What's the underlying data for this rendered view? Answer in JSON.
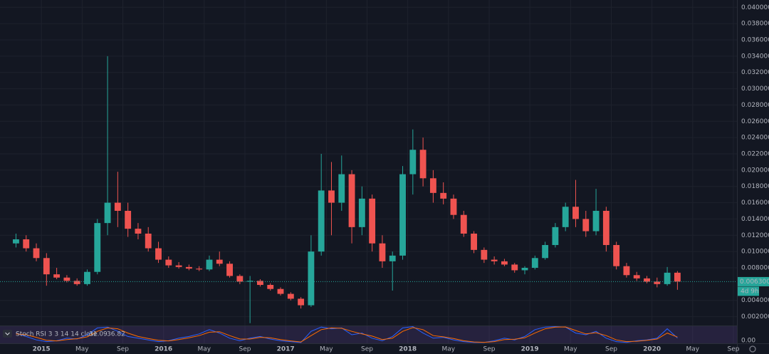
{
  "chart_data": {
    "type": "candlestick",
    "x": [
      "2014-10",
      "2014-11",
      "2014-12",
      "2015-01",
      "2015-02",
      "2015-03",
      "2015-04",
      "2015-05",
      "2015-06",
      "2015-07",
      "2015-08",
      "2015-09",
      "2015-10",
      "2015-11",
      "2015-12",
      "2016-01",
      "2016-02",
      "2016-03",
      "2016-04",
      "2016-05",
      "2016-06",
      "2016-07",
      "2016-08",
      "2016-09",
      "2016-10",
      "2016-11",
      "2016-12",
      "2017-01",
      "2017-02",
      "2017-03",
      "2017-04",
      "2017-05",
      "2017-06",
      "2017-07",
      "2017-08",
      "2017-09",
      "2017-10",
      "2017-11",
      "2017-12",
      "2018-01",
      "2018-02",
      "2018-03",
      "2018-04",
      "2018-05",
      "2018-06",
      "2018-07",
      "2018-08",
      "2018-09",
      "2018-10",
      "2018-11",
      "2018-12",
      "2019-01",
      "2019-02",
      "2019-03",
      "2019-04",
      "2019-05",
      "2019-06",
      "2019-07",
      "2019-08",
      "2019-09",
      "2019-10",
      "2019-11",
      "2019-12",
      "2020-01",
      "2020-02",
      "2020-03"
    ],
    "open": [
      0.011,
      0.0115,
      0.0104,
      0.0092,
      0.0072,
      0.0068,
      0.0064,
      0.006,
      0.0075,
      0.0135,
      0.016,
      0.015,
      0.0128,
      0.0122,
      0.0104,
      0.009,
      0.0083,
      0.0081,
      0.0079,
      0.0078,
      0.009,
      0.0085,
      0.007,
      0.0063,
      0.0064,
      0.0059,
      0.0054,
      0.0048,
      0.0042,
      0.0034,
      0.01,
      0.0175,
      0.016,
      0.0195,
      0.013,
      0.0165,
      0.011,
      0.0088,
      0.0095,
      0.0195,
      0.0225,
      0.019,
      0.0172,
      0.0165,
      0.0145,
      0.0122,
      0.0102,
      0.009,
      0.0088,
      0.0084,
      0.0077,
      0.008,
      0.0092,
      0.0108,
      0.013,
      0.0155,
      0.014,
      0.0125,
      0.015,
      0.0108,
      0.0082,
      0.0071,
      0.0067,
      0.0063,
      0.006,
      0.0074
    ],
    "high": [
      0.0122,
      0.012,
      0.011,
      0.0098,
      0.008,
      0.0071,
      0.0067,
      0.0078,
      0.014,
      0.034,
      0.0198,
      0.016,
      0.0135,
      0.013,
      0.0112,
      0.0094,
      0.0087,
      0.0084,
      0.0082,
      0.0095,
      0.01,
      0.0088,
      0.0072,
      0.007,
      0.0066,
      0.0061,
      0.0056,
      0.005,
      0.0044,
      0.012,
      0.022,
      0.021,
      0.0218,
      0.02,
      0.018,
      0.017,
      0.012,
      0.01,
      0.0205,
      0.025,
      0.024,
      0.02,
      0.0185,
      0.017,
      0.015,
      0.0125,
      0.0105,
      0.0094,
      0.0091,
      0.0086,
      0.0082,
      0.0095,
      0.0112,
      0.0135,
      0.016,
      0.0188,
      0.015,
      0.0177,
      0.0155,
      0.0112,
      0.0086,
      0.0075,
      0.007,
      0.0068,
      0.0081,
      0.0076
    ],
    "low": [
      0.0105,
      0.01,
      0.0088,
      0.0058,
      0.0066,
      0.0062,
      0.0058,
      0.0058,
      0.0072,
      0.012,
      0.013,
      0.0118,
      0.0115,
      0.01,
      0.0086,
      0.008,
      0.0079,
      0.0077,
      0.0076,
      0.0076,
      0.0082,
      0.0068,
      0.006,
      0.0012,
      0.0057,
      0.0052,
      0.0046,
      0.004,
      0.003,
      0.0032,
      0.0095,
      0.012,
      0.015,
      0.011,
      0.012,
      0.01,
      0.008,
      0.0052,
      0.009,
      0.017,
      0.018,
      0.016,
      0.0158,
      0.014,
      0.0118,
      0.0098,
      0.0086,
      0.0084,
      0.0082,
      0.0074,
      0.0072,
      0.0078,
      0.009,
      0.0105,
      0.0125,
      0.013,
      0.0118,
      0.012,
      0.01,
      0.0078,
      0.0068,
      0.0064,
      0.0061,
      0.0056,
      0.0058,
      0.0053
    ],
    "close": [
      0.0115,
      0.0104,
      0.0092,
      0.0072,
      0.0068,
      0.0064,
      0.006,
      0.0075,
      0.0135,
      0.016,
      0.015,
      0.0128,
      0.0122,
      0.0104,
      0.009,
      0.0083,
      0.0081,
      0.0079,
      0.0078,
      0.009,
      0.0085,
      0.007,
      0.0063,
      0.0064,
      0.0059,
      0.0054,
      0.0048,
      0.0042,
      0.0034,
      0.01,
      0.0175,
      0.016,
      0.0195,
      0.013,
      0.0165,
      0.011,
      0.0088,
      0.0095,
      0.0195,
      0.0225,
      0.019,
      0.0172,
      0.0165,
      0.0145,
      0.0122,
      0.0102,
      0.009,
      0.0088,
      0.0084,
      0.0077,
      0.008,
      0.0092,
      0.0108,
      0.013,
      0.0155,
      0.014,
      0.0125,
      0.015,
      0.0108,
      0.0082,
      0.0071,
      0.0067,
      0.0063,
      0.006,
      0.0074,
      0.0063
    ],
    "up_color": "#26a69a",
    "down_color": "#ef5350",
    "xlim": [
      "2014-09",
      "2020-09"
    ],
    "xticks": [
      {
        "value": "2015-01",
        "label": "2015"
      },
      {
        "value": "2015-05",
        "label": "May"
      },
      {
        "value": "2015-09",
        "label": "Sep"
      },
      {
        "value": "2016-01",
        "label": "2016"
      },
      {
        "value": "2016-05",
        "label": "May"
      },
      {
        "value": "2016-09",
        "label": "Sep"
      },
      {
        "value": "2017-01",
        "label": "2017"
      },
      {
        "value": "2017-05",
        "label": "May"
      },
      {
        "value": "2017-09",
        "label": "Sep"
      },
      {
        "value": "2018-01",
        "label": "2018"
      },
      {
        "value": "2018-05",
        "label": "May"
      },
      {
        "value": "2018-09",
        "label": "Sep"
      },
      {
        "value": "2019-01",
        "label": "2019"
      },
      {
        "value": "2019-05",
        "label": "May"
      },
      {
        "value": "2019-09",
        "label": "Sep"
      },
      {
        "value": "2020-01",
        "label": "2020"
      },
      {
        "value": "2020-05",
        "label": "May"
      },
      {
        "value": "2020-09",
        "label": "Sep"
      }
    ],
    "ylim": [
      0.001,
      0.0409
    ],
    "yticks": [
      {
        "value": 0.002,
        "label": "0.002000"
      },
      {
        "value": 0.004,
        "label": "0.004000"
      },
      {
        "value": 0.008,
        "label": "0.008000"
      },
      {
        "value": 0.01,
        "label": "0.010000"
      },
      {
        "value": 0.012,
        "label": "0.012000"
      },
      {
        "value": 0.014,
        "label": "0.014000"
      },
      {
        "value": 0.016,
        "label": "0.016000"
      },
      {
        "value": 0.018,
        "label": "0.018000"
      },
      {
        "value": 0.02,
        "label": "0.020000"
      },
      {
        "value": 0.022,
        "label": "0.022000"
      },
      {
        "value": 0.024,
        "label": "0.024000"
      },
      {
        "value": 0.026,
        "label": "0.026000"
      },
      {
        "value": 0.028,
        "label": "0.028000"
      },
      {
        "value": 0.03,
        "label": "0.030000"
      },
      {
        "value": 0.032,
        "label": "0.032000"
      },
      {
        "value": 0.034,
        "label": "0.034000"
      },
      {
        "value": 0.036,
        "label": "0.036000"
      },
      {
        "value": 0.038,
        "label": "0.038000"
      },
      {
        "value": 0.04,
        "label": "0.040000"
      }
    ],
    "grid": true,
    "last_price": {
      "value": 0.0063,
      "label": "0.006300"
    },
    "countdown": "4d 9h",
    "stoch": {
      "title": "Stoch RSI 3 3 14 14 close",
      "ylim": [
        0,
        100
      ],
      "yticks": [
        {
          "value": 0,
          "label": "0.00"
        }
      ],
      "series": [
        {
          "color": "#2962ff",
          "values": [
            60,
            40,
            20,
            10,
            15,
            30,
            25,
            50,
            90,
            95,
            70,
            40,
            30,
            20,
            10,
            15,
            30,
            40,
            55,
            80,
            60,
            30,
            15,
            30,
            40,
            25,
            15,
            10,
            5,
            70,
            95,
            85,
            90,
            50,
            60,
            30,
            15,
            40,
            90,
            98,
            60,
            30,
            35,
            20,
            10,
            5,
            5,
            15,
            30,
            20,
            40,
            80,
            95,
            98,
            95,
            60,
            50,
            70,
            30,
            10,
            5,
            15,
            20,
            30,
            85,
            31.09
          ]
        },
        {
          "color": "#ff6d00",
          "values": [
            55,
            50,
            35,
            18,
            14,
            22,
            27,
            38,
            70,
            90,
            85,
            60,
            40,
            28,
            18,
            14,
            22,
            32,
            45,
            65,
            68,
            45,
            25,
            25,
            35,
            32,
            22,
            14,
            8,
            45,
            80,
            90,
            88,
            70,
            55,
            42,
            22,
            30,
            70,
            92,
            80,
            45,
            38,
            28,
            15,
            8,
            6,
            10,
            22,
            24,
            32,
            60,
            85,
            95,
            96,
            75,
            55,
            62,
            45,
            20,
            10,
            12,
            18,
            25,
            60,
            36.82
          ]
        }
      ]
    }
  }
}
